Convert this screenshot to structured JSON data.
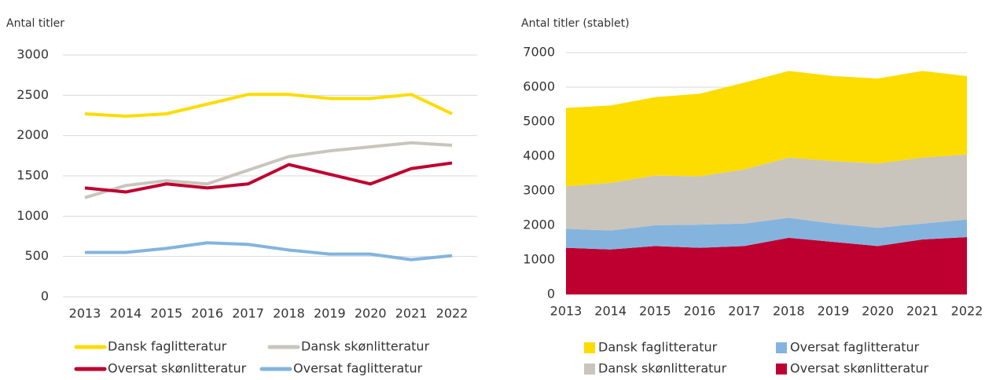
{
  "chart_data": [
    {
      "type": "line",
      "title": "Antal titler",
      "categories": [
        "2013",
        "2014",
        "2015",
        "2016",
        "2017",
        "2018",
        "2019",
        "2020",
        "2021",
        "2022"
      ],
      "ylim": [
        0,
        3000
      ],
      "yticks": [
        0,
        500,
        1000,
        1500,
        2000,
        2500,
        3000
      ],
      "grid": true,
      "series": [
        {
          "name": "Dansk faglitteratur",
          "color": "#fddc00",
          "values": [
            2270,
            2240,
            2270,
            2390,
            2510,
            2510,
            2460,
            2460,
            2510,
            2270
          ]
        },
        {
          "name": "Dansk skønlitteratur",
          "color": "#c9c5bd",
          "values": [
            1230,
            1380,
            1440,
            1400,
            1570,
            1740,
            1810,
            1860,
            1910,
            1880
          ]
        },
        {
          "name": "Oversat skønlitteratur",
          "color": "#be0030",
          "values": [
            1350,
            1300,
            1400,
            1350,
            1400,
            1640,
            1520,
            1400,
            1590,
            1660
          ]
        },
        {
          "name": "Oversat faglitteratur",
          "color": "#84b4de",
          "values": [
            550,
            550,
            600,
            670,
            650,
            580,
            530,
            530,
            460,
            510
          ]
        }
      ]
    },
    {
      "type": "area",
      "stacked": true,
      "title": "Antal titler (stablet)",
      "categories": [
        "2013",
        "2014",
        "2015",
        "2016",
        "2017",
        "2018",
        "2019",
        "2020",
        "2021",
        "2022"
      ],
      "ylim": [
        0,
        7000
      ],
      "yticks": [
        0,
        1000,
        2000,
        3000,
        4000,
        5000,
        6000,
        7000
      ],
      "grid": true,
      "series": [
        {
          "name": "Oversat skønlitteratur",
          "color": "#be0030",
          "values": [
            1350,
            1300,
            1400,
            1350,
            1400,
            1640,
            1520,
            1400,
            1590,
            1660
          ]
        },
        {
          "name": "Oversat faglitteratur",
          "color": "#84b4de",
          "values": [
            550,
            550,
            600,
            670,
            650,
            580,
            530,
            530,
            460,
            510
          ]
        },
        {
          "name": "Dansk skønlitteratur",
          "color": "#c9c5bd",
          "values": [
            1230,
            1380,
            1440,
            1400,
            1570,
            1740,
            1810,
            1860,
            1910,
            1880
          ]
        },
        {
          "name": "Dansk faglitteratur",
          "color": "#fddc00",
          "values": [
            2270,
            2240,
            2270,
            2390,
            2510,
            2510,
            2460,
            2460,
            2510,
            2270
          ]
        }
      ]
    }
  ]
}
